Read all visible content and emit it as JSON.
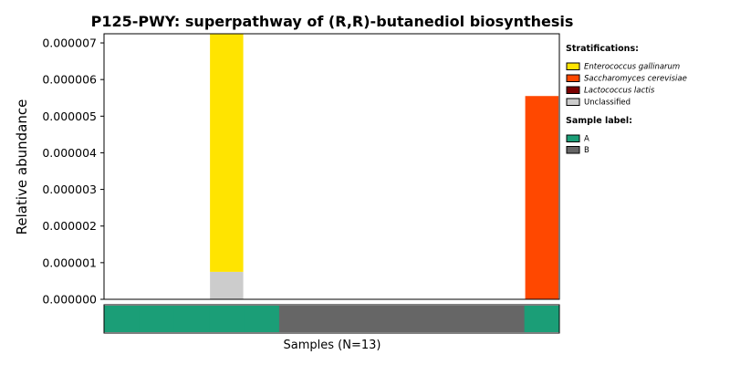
{
  "chart_data": {
    "type": "bar",
    "title": "P125-PWY: superpathway of (R,R)-butanediol biosynthesis",
    "ylabel": "Relative abundance",
    "xlabel": "Samples (N=13)",
    "n_samples": 13,
    "ylim": [
      0,
      7.25e-06
    ],
    "yticks": [
      "0.000000",
      "0.000001",
      "0.000002",
      "0.000003",
      "0.000004",
      "0.000005",
      "0.000006",
      "0.000007"
    ],
    "stacked": true,
    "samples": [
      {
        "label": "A",
        "values": {
          "Enterococcus gallinarum": 0,
          "Saccharomyces cerevisiae": 0,
          "Lactococcus lactis": 0,
          "Unclassified": 0
        }
      },
      {
        "label": "A",
        "values": {
          "Enterococcus gallinarum": 0,
          "Saccharomyces cerevisiae": 0,
          "Lactococcus lactis": 0,
          "Unclassified": 0
        }
      },
      {
        "label": "A",
        "values": {
          "Enterococcus gallinarum": 0,
          "Saccharomyces cerevisiae": 0,
          "Lactococcus lactis": 0,
          "Unclassified": 0
        }
      },
      {
        "label": "A",
        "values": {
          "Enterococcus gallinarum": 6.5e-06,
          "Saccharomyces cerevisiae": 0,
          "Lactococcus lactis": 0,
          "Unclassified": 7.5e-07
        }
      },
      {
        "label": "A",
        "values": {
          "Enterococcus gallinarum": 0,
          "Saccharomyces cerevisiae": 0,
          "Lactococcus lactis": 0,
          "Unclassified": 0
        }
      },
      {
        "label": "B",
        "values": {
          "Enterococcus gallinarum": 0,
          "Saccharomyces cerevisiae": 0,
          "Lactococcus lactis": 0,
          "Unclassified": 0
        }
      },
      {
        "label": "B",
        "values": {
          "Enterococcus gallinarum": 0,
          "Saccharomyces cerevisiae": 0,
          "Lactococcus lactis": 0,
          "Unclassified": 0
        }
      },
      {
        "label": "B",
        "values": {
          "Enterococcus gallinarum": 0,
          "Saccharomyces cerevisiae": 0,
          "Lactococcus lactis": 0,
          "Unclassified": 0
        }
      },
      {
        "label": "B",
        "values": {
          "Enterococcus gallinarum": 0,
          "Saccharomyces cerevisiae": 0,
          "Lactococcus lactis": 0,
          "Unclassified": 0
        }
      },
      {
        "label": "B",
        "values": {
          "Enterococcus gallinarum": 0,
          "Saccharomyces cerevisiae": 0,
          "Lactococcus lactis": 0,
          "Unclassified": 0
        }
      },
      {
        "label": "B",
        "values": {
          "Enterococcus gallinarum": 0,
          "Saccharomyces cerevisiae": 0,
          "Lactococcus lactis": 0,
          "Unclassified": 0
        }
      },
      {
        "label": "B",
        "values": {
          "Enterococcus gallinarum": 0,
          "Saccharomyces cerevisiae": 0,
          "Lactococcus lactis": 0,
          "Unclassified": 0
        }
      },
      {
        "label": "A",
        "values": {
          "Enterococcus gallinarum": 0,
          "Saccharomyces cerevisiae": 5.55e-06,
          "Lactococcus lactis": 0,
          "Unclassified": 0
        }
      }
    ],
    "stack_order": [
      "Unclassified",
      "Lactococcus lactis",
      "Saccharomyces cerevisiae",
      "Enterococcus gallinarum"
    ],
    "legend": {
      "position": "right",
      "stratifications_heading": "Stratifications:",
      "stratifications": [
        {
          "name": "Enterococcus gallinarum",
          "color": "#ffe400",
          "italic": true
        },
        {
          "name": "Saccharomyces cerevisiae",
          "color": "#ff4800",
          "italic": true
        },
        {
          "name": "Lactococcus lactis",
          "color": "#7a0000",
          "italic": true
        },
        {
          "name": "Unclassified",
          "color": "#cccccc",
          "italic": false
        }
      ],
      "sample_label_heading": "Sample label:",
      "sample_labels": [
        {
          "name": "A",
          "color": "#1b9e77"
        },
        {
          "name": "B",
          "color": "#666666"
        }
      ]
    },
    "grid": false
  }
}
